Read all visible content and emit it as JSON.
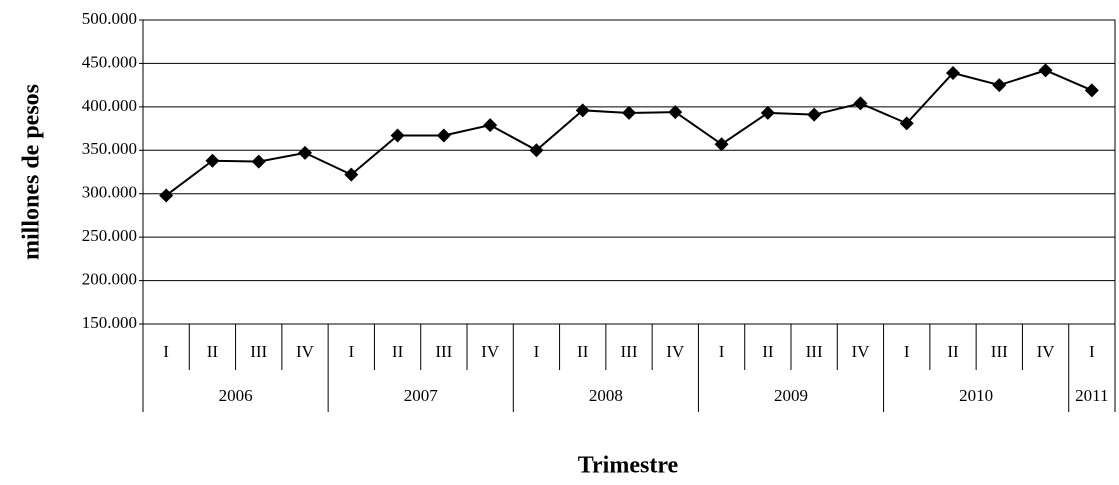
{
  "chart_data": {
    "type": "line",
    "y_label": "millones de pesos",
    "x_label": "Trimestre",
    "categories": [
      "I",
      "II",
      "III",
      "IV",
      "I",
      "II",
      "III",
      "IV",
      "I",
      "II",
      "III",
      "IV",
      "I",
      "II",
      "III",
      "IV",
      "I",
      "II",
      "III",
      "IV",
      "I"
    ],
    "years": [
      "2006",
      "2006",
      "2006",
      "2006",
      "2007",
      "2007",
      "2007",
      "2007",
      "2008",
      "2008",
      "2008",
      "2008",
      "2009",
      "2009",
      "2009",
      "2009",
      "2010",
      "2010",
      "2010",
      "2010",
      "2011"
    ],
    "series": [
      {
        "color": "#000000",
        "values": [
          298000,
          338000,
          337000,
          347000,
          322000,
          367000,
          367000,
          379000,
          350000,
          396000,
          393000,
          394000,
          357000,
          393000,
          391000,
          404000,
          381000,
          439000,
          425000,
          442000,
          419000
        ]
      }
    ],
    "ylim": [
      150000,
      500000
    ],
    "yticks": [
      {
        "value": 150000,
        "label": "150.000"
      },
      {
        "value": 200000,
        "label": "200.000"
      },
      {
        "value": 250000,
        "label": "250.000"
      },
      {
        "value": 300000,
        "label": "300.000"
      },
      {
        "value": 350000,
        "label": "350.000"
      },
      {
        "value": 400000,
        "label": "400.000"
      },
      {
        "value": 450000,
        "label": "450.000"
      },
      {
        "value": 500000,
        "label": "500.000"
      }
    ],
    "grid": true
  }
}
